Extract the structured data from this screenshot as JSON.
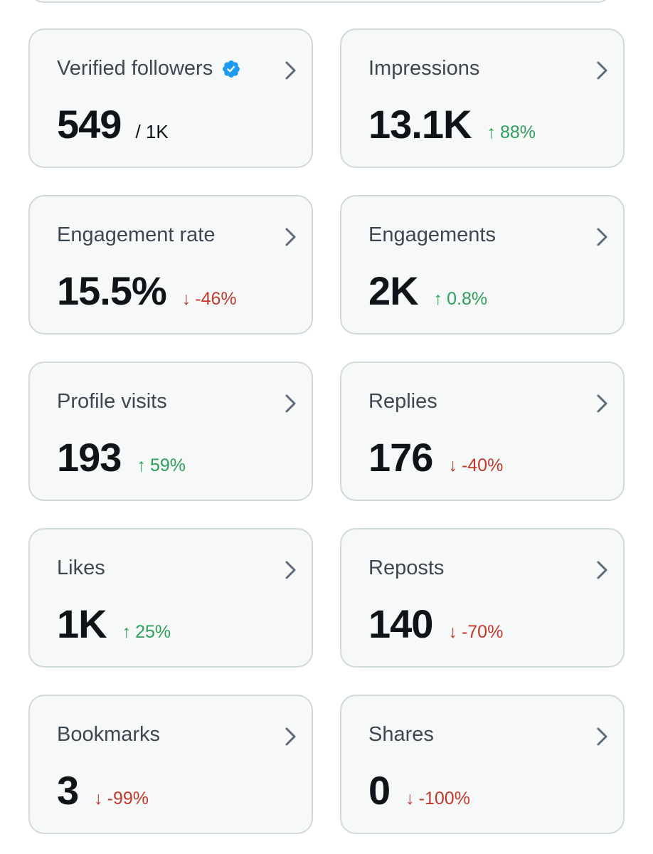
{
  "colors": {
    "up": "#2e9e5b",
    "down": "#c0392b",
    "verified": "#1d9bf0"
  },
  "cards": [
    {
      "label": "Verified followers",
      "value": "549",
      "limit": "/ 1K",
      "change": null,
      "direction": null,
      "icon": "verified-badge-icon"
    },
    {
      "label": "Impressions",
      "value": "13.1K",
      "change": "88%",
      "direction": "up"
    },
    {
      "label": "Engagement rate",
      "value": "15.5%",
      "change": "-46%",
      "direction": "down"
    },
    {
      "label": "Engagements",
      "value": "2K",
      "change": "0.8%",
      "direction": "up"
    },
    {
      "label": "Profile visits",
      "value": "193",
      "change": "59%",
      "direction": "up"
    },
    {
      "label": "Replies",
      "value": "176",
      "change": "-40%",
      "direction": "down"
    },
    {
      "label": "Likes",
      "value": "1K",
      "change": "25%",
      "direction": "up"
    },
    {
      "label": "Reposts",
      "value": "140",
      "change": "-70%",
      "direction": "down"
    },
    {
      "label": "Bookmarks",
      "value": "3",
      "change": "-99%",
      "direction": "down"
    },
    {
      "label": "Shares",
      "value": "0",
      "change": "-100%",
      "direction": "down"
    }
  ],
  "arrows": {
    "up": "↑",
    "down": "↓"
  }
}
